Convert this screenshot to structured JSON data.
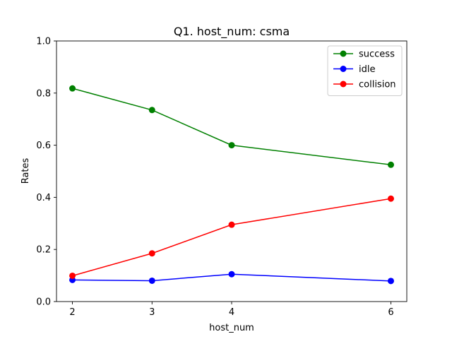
{
  "chart_data": {
    "type": "line",
    "title": "Q1. host_num: csma",
    "xlabel": "host_num",
    "ylabel": "Rates",
    "x": [
      2,
      3,
      4,
      6
    ],
    "xticks": [
      2,
      3,
      4,
      6
    ],
    "xlim": [
      1.8,
      6.2
    ],
    "ylim": [
      0.0,
      1.0
    ],
    "yticks": [
      0.0,
      0.2,
      0.4,
      0.6,
      0.8,
      1.0
    ],
    "ytick_labels": [
      "0.0",
      "0.2",
      "0.4",
      "0.6",
      "0.8",
      "1.0"
    ],
    "grid": false,
    "legend_position": "top-right",
    "series": [
      {
        "name": "success",
        "color": "#008000",
        "values": [
          0.818,
          0.735,
          0.6,
          0.525
        ]
      },
      {
        "name": "idle",
        "color": "#0000ff",
        "values": [
          0.083,
          0.08,
          0.105,
          0.079
        ]
      },
      {
        "name": "collision",
        "color": "#ff0000",
        "values": [
          0.099,
          0.185,
          0.295,
          0.395
        ]
      }
    ]
  }
}
